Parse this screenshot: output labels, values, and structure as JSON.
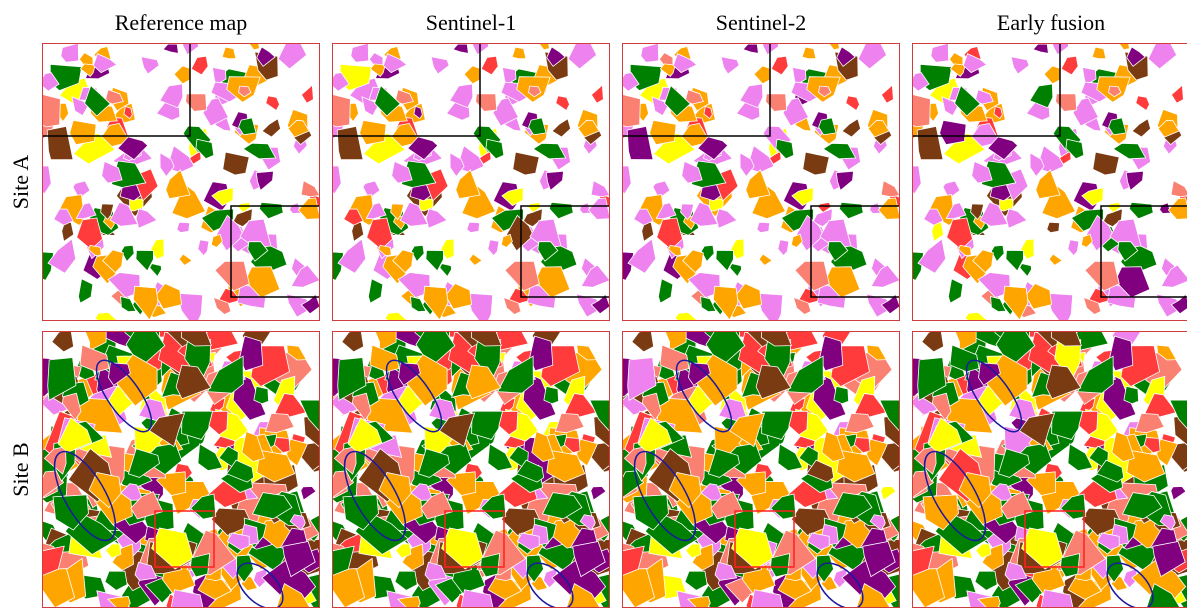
{
  "columns": [
    "Reference map",
    "Sentinel-1",
    "Sentinel-2",
    "Early fusion"
  ],
  "rows": [
    "Site A",
    "Site B"
  ]
}
